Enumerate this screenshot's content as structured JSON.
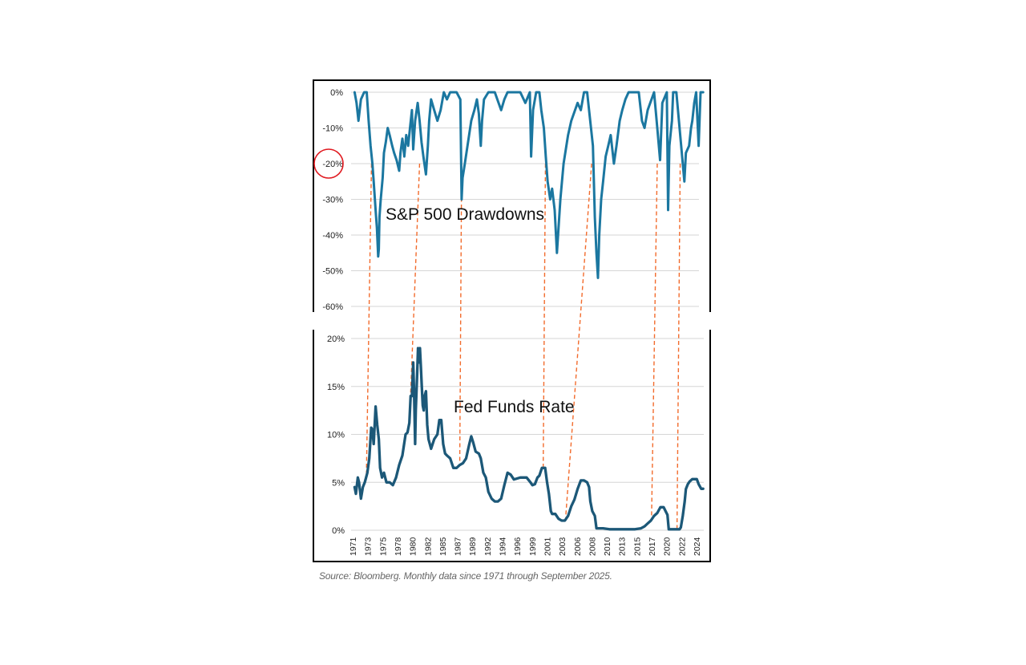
{
  "source_note": "Source: Bloomberg. Monthly data since 1971 through September 2025.",
  "colors": {
    "drawdown_line": "#1b77a0",
    "fed_line": "#1c5878",
    "guide_lines": "#f26b2c",
    "highlight_circle": "#e0191f"
  },
  "chart_data": [
    {
      "type": "line",
      "panel": "top",
      "label": "S&P 500 Drawdowns",
      "y_ticks": [
        "0%",
        "-10%",
        "-20%",
        "-30%",
        "-40%",
        "-50%",
        "-60%"
      ],
      "ylim": [
        -60,
        0
      ],
      "grid": true,
      "highlighted_tick": "-20%",
      "series": [
        {
          "x": [
            1971.0,
            1971.3,
            1971.6,
            1972.0,
            1972.5,
            1972.9,
            1973.2,
            1973.5,
            1973.8,
            1974.0,
            1974.3,
            1974.5,
            1974.7,
            1974.8,
            1974.9,
            1975.1,
            1975.4,
            1975.6,
            1975.9,
            1976.2,
            1976.5,
            1976.9,
            1977.2,
            1977.6,
            1978.0,
            1978.2,
            1978.5,
            1978.8,
            1979.1,
            1979.4,
            1979.7,
            1980.0,
            1980.2,
            1980.5,
            1980.9,
            1981.2,
            1981.5,
            1981.8,
            1982.2,
            1982.5,
            1982.7,
            1983.0,
            1983.5,
            1984.0,
            1984.5,
            1985.0,
            1985.5,
            1986.0,
            1986.5,
            1987.0,
            1987.6,
            1987.8,
            1987.95,
            1988.3,
            1988.8,
            1989.3,
            1989.8,
            1990.2,
            1990.5,
            1990.8,
            1991.0,
            1991.3,
            1992.0,
            1993.0,
            1994.0,
            1994.5,
            1995.0,
            1996.0,
            1997.0,
            1997.8,
            1998.5,
            1998.7,
            1999.0,
            1999.5,
            2000.0,
            2000.3,
            2000.7,
            2001.0,
            2001.3,
            2001.7,
            2002.0,
            2002.4,
            2002.75,
            2003.0,
            2003.3,
            2003.8,
            2004.5,
            2005.0,
            2006.0,
            2006.5,
            2007.0,
            2007.5,
            2007.8,
            2008.1,
            2008.4,
            2008.7,
            2008.95,
            2009.2,
            2009.4,
            2009.7,
            2010.0,
            2010.4,
            2010.8,
            2011.2,
            2011.7,
            2012.1,
            2012.6,
            2013.0,
            2013.5,
            2014.0,
            2015.0,
            2015.6,
            2016.1,
            2016.5,
            2017.0,
            2018.0,
            2018.1,
            2018.5,
            2018.95,
            2019.3,
            2020.0,
            2020.2,
            2020.4,
            2020.8,
            2021.0,
            2021.5,
            2022.0,
            2022.5,
            2022.75,
            2023.0,
            2023.5,
            2023.8,
            2024.0,
            2024.3,
            2024.6,
            2025.0,
            2025.3,
            2025.7
          ],
          "y": [
            0,
            -3,
            -8,
            -2,
            0,
            0,
            -8,
            -15,
            -20,
            -25,
            -33,
            -38,
            -46,
            -44,
            -35,
            -30,
            -24,
            -17,
            -14,
            -10,
            -12,
            -15,
            -17,
            -19,
            -22,
            -17,
            -13,
            -18,
            -12,
            -15,
            -10,
            -5,
            -16,
            -8,
            -3,
            -8,
            -14,
            -18,
            -23,
            -15,
            -8,
            -2,
            -5,
            -8,
            -5,
            0,
            -2,
            0,
            0,
            0,
            -2,
            -30,
            -24,
            -20,
            -14,
            -8,
            -5,
            -2,
            -6,
            -15,
            -8,
            -2,
            0,
            0,
            -5,
            -2,
            0,
            0,
            0,
            -3,
            0,
            -18,
            -5,
            0,
            0,
            -5,
            -10,
            -18,
            -25,
            -30,
            -27,
            -33,
            -45,
            -38,
            -30,
            -20,
            -12,
            -8,
            -3,
            -5,
            0,
            0,
            -5,
            -10,
            -15,
            -35,
            -45,
            -52,
            -40,
            -30,
            -25,
            -18,
            -15,
            -12,
            -20,
            -15,
            -8,
            -5,
            -2,
            0,
            0,
            0,
            -8,
            -10,
            -5,
            0,
            -2,
            -10,
            -19,
            -3,
            0,
            -33,
            -15,
            -8,
            0,
            0,
            -10,
            -20,
            -25,
            -17,
            -15,
            -10,
            -8,
            -3,
            0,
            -15,
            0,
            0
          ],
          "name": "",
          "color": "#1b77a0"
        }
      ]
    },
    {
      "type": "line",
      "panel": "bottom",
      "label": "Fed Funds Rate",
      "y_ticks": [
        "20%",
        "15%",
        "10%",
        "5%",
        "0%"
      ],
      "ylim": [
        0,
        20
      ],
      "grid": true,
      "x_ticks": [
        "1971",
        "1973",
        "1975",
        "1978",
        "1980",
        "1982",
        "1985",
        "1987",
        "1989",
        "1992",
        "1994",
        "1996",
        "1999",
        "2001",
        "2003",
        "2006",
        "2008",
        "2010",
        "2013",
        "2015",
        "2017",
        "2020",
        "2022",
        "2024"
      ],
      "series": [
        {
          "x": [
            1971.0,
            1971.2,
            1971.5,
            1971.7,
            1972.0,
            1972.3,
            1972.6,
            1973.0,
            1973.3,
            1973.6,
            1973.8,
            1974.0,
            1974.3,
            1974.55,
            1974.8,
            1975.0,
            1975.3,
            1975.6,
            1976.0,
            1976.5,
            1977.0,
            1977.5,
            1978.0,
            1978.5,
            1979.0,
            1979.3,
            1979.6,
            1979.8,
            1980.0,
            1980.2,
            1980.35,
            1980.5,
            1980.6,
            1980.8,
            1980.95,
            1981.1,
            1981.25,
            1981.4,
            1981.55,
            1981.7,
            1981.85,
            1982.0,
            1982.2,
            1982.4,
            1982.6,
            1982.8,
            1983.0,
            1983.5,
            1984.0,
            1984.3,
            1984.6,
            1984.9,
            1985.2,
            1985.5,
            1986.0,
            1986.5,
            1987.0,
            1987.5,
            1988.0,
            1988.5,
            1989.0,
            1989.3,
            1989.6,
            1990.0,
            1990.5,
            1990.8,
            1991.2,
            1991.6,
            1992.0,
            1992.5,
            1993.0,
            1993.5,
            1994.0,
            1994.5,
            1995.0,
            1995.5,
            1996.0,
            1997.0,
            1998.0,
            1998.6,
            1998.9,
            1999.3,
            1999.7,
            2000.0,
            2000.4,
            2000.9,
            2001.2,
            2001.5,
            2001.8,
            2002.0,
            2002.5,
            2003.0,
            2003.5,
            2004.0,
            2004.5,
            2005.0,
            2005.5,
            2006.0,
            2006.5,
            2007.0,
            2007.5,
            2007.8,
            2008.0,
            2008.3,
            2008.7,
            2008.95,
            2009.5,
            2010.0,
            2011.0,
            2012.0,
            2013.0,
            2014.0,
            2015.0,
            2015.95,
            2016.5,
            2017.0,
            2017.5,
            2018.0,
            2018.5,
            2019.0,
            2019.5,
            2019.8,
            2020.1,
            2020.3,
            2021.0,
            2022.0,
            2022.2,
            2022.5,
            2022.8,
            2023.0,
            2023.3,
            2023.6,
            2024.0,
            2024.4,
            2024.7,
            2025.0,
            2025.4,
            2025.7
          ],
          "y": [
            4.5,
            3.8,
            5.5,
            5.0,
            3.3,
            4.5,
            5.0,
            6.0,
            7.5,
            10.7,
            10.5,
            9.0,
            12.9,
            11.0,
            9.5,
            6.5,
            5.5,
            6.0,
            5.0,
            5.0,
            4.7,
            5.5,
            6.8,
            7.8,
            10.0,
            10.2,
            11.2,
            14.0,
            14.0,
            17.5,
            14.0,
            9.0,
            12.5,
            16.0,
            19.0,
            17.5,
            19.0,
            17.0,
            15.0,
            13.0,
            12.5,
            14.0,
            14.5,
            11.0,
            9.5,
            9.0,
            8.5,
            9.5,
            10.0,
            11.5,
            11.5,
            9.0,
            8.0,
            7.8,
            7.5,
            6.5,
            6.5,
            6.8,
            7.0,
            7.5,
            9.0,
            9.8,
            9.2,
            8.2,
            8.0,
            7.5,
            6.0,
            5.5,
            4.0,
            3.3,
            3.0,
            3.0,
            3.3,
            4.7,
            6.0,
            5.8,
            5.3,
            5.5,
            5.5,
            5.0,
            4.7,
            4.8,
            5.5,
            5.7,
            6.5,
            6.5,
            5.0,
            3.8,
            2.0,
            1.7,
            1.7,
            1.2,
            1.0,
            1.0,
            1.5,
            2.5,
            3.2,
            4.3,
            5.2,
            5.2,
            5.0,
            4.5,
            3.0,
            2.0,
            1.5,
            0.2,
            0.2,
            0.2,
            0.1,
            0.1,
            0.1,
            0.1,
            0.1,
            0.2,
            0.4,
            0.7,
            1.0,
            1.5,
            1.8,
            2.4,
            2.4,
            2.0,
            1.6,
            0.1,
            0.1,
            0.1,
            0.3,
            1.5,
            3.0,
            4.3,
            4.8,
            5.1,
            5.33,
            5.33,
            5.33,
            4.8,
            4.33,
            4.33
          ],
          "name": "",
          "color": "#1c5878"
        }
      ]
    }
  ]
}
